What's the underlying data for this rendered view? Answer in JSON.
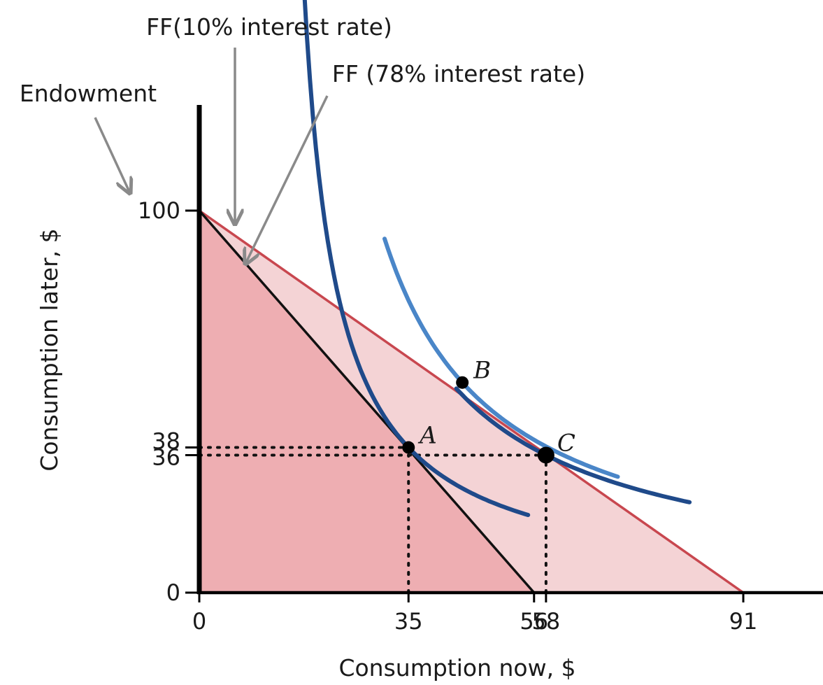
{
  "chart_data": {
    "type": "line",
    "xlabel": "Consumption now, $",
    "ylabel": "Consumption later, $",
    "x_ticks": [
      0,
      35,
      56,
      58,
      91
    ],
    "y_ticks": [
      0,
      36,
      38,
      100
    ],
    "xlim": [
      0,
      91
    ],
    "ylim": [
      0,
      100
    ],
    "grid": false,
    "legend": "none",
    "colors": {
      "ff_10": "#c8474f",
      "ff_78": "#111111",
      "fill_10": "#f4d3d5",
      "fill_78": "#eeaeb2",
      "indiff_dark": "#1f4a8a",
      "indiff_light": "#4a86c8",
      "arrow": "#8a8a8a"
    },
    "frontiers": [
      {
        "id": "ff_10",
        "label": "FF(10% interest rate)",
        "points": [
          [
            0,
            100
          ],
          [
            91,
            0
          ]
        ]
      },
      {
        "id": "ff_78",
        "label": "FF (78% interest rate)",
        "points": [
          [
            0,
            100
          ],
          [
            56,
            0
          ]
        ]
      }
    ],
    "endowment": {
      "label": "Endowment",
      "point": [
        0,
        100
      ]
    },
    "indifference_curves": [
      {
        "id": "ic1",
        "through": "A",
        "color_key": "indiff_dark",
        "x_range": [
          17,
          55
        ]
      },
      {
        "id": "ic2",
        "through": "B",
        "color_key": "indiff_light",
        "x_range": [
          31,
          70
        ]
      },
      {
        "id": "ic3",
        "through": "C",
        "color_key": "indiff_dark",
        "x_range": [
          43,
          82
        ]
      }
    ],
    "points": [
      {
        "label": "A",
        "x": 35,
        "y": 38
      },
      {
        "label": "B",
        "x": 44,
        "y": 55
      },
      {
        "label": "C",
        "x": 58,
        "y": 36
      }
    ],
    "dotted_guides": [
      {
        "from": [
          0,
          38
        ],
        "to": [
          35,
          38
        ]
      },
      {
        "from": [
          0,
          36
        ],
        "to": [
          58,
          36
        ]
      },
      {
        "from": [
          35,
          0
        ],
        "to": [
          35,
          36
        ]
      },
      {
        "from": [
          58,
          0
        ],
        "to": [
          58,
          36
        ]
      }
    ]
  }
}
